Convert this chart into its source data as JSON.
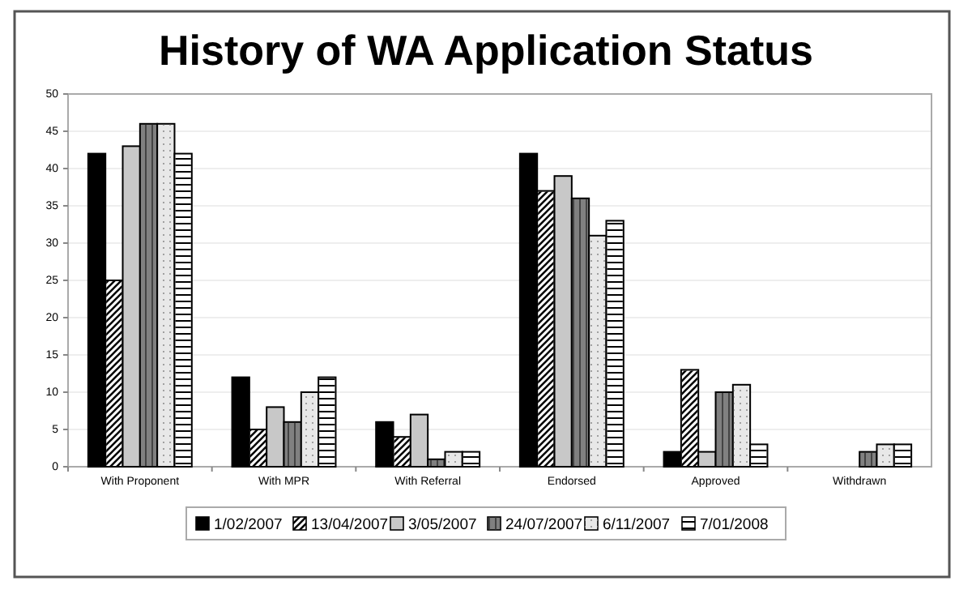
{
  "chart_data": {
    "type": "bar",
    "title": "History of WA Application Status",
    "categories": [
      "With Proponent",
      "With MPR",
      "With Referral",
      "Endorsed",
      "Approved",
      "Withdrawn"
    ],
    "series": [
      {
        "name": "1/02/2007",
        "color": "#000000",
        "values": [
          42,
          12,
          6,
          42,
          2,
          0
        ]
      },
      {
        "name": "13/04/2007",
        "color": "#ffffff",
        "values": [
          25,
          5,
          4,
          37,
          13,
          0
        ]
      },
      {
        "name": "3/05/2007",
        "color": "#c8c8c8",
        "values": [
          43,
          8,
          7,
          39,
          2,
          0
        ]
      },
      {
        "name": "24/07/2007",
        "color": "#808080",
        "values": [
          46,
          6,
          1,
          36,
          10,
          2
        ]
      },
      {
        "name": "6/11/2007",
        "color": "#e8e8e8",
        "values": [
          46,
          10,
          2,
          31,
          11,
          3
        ]
      },
      {
        "name": "7/01/2008",
        "color": "#ffffff",
        "values": [
          42,
          12,
          2,
          33,
          3,
          3
        ]
      }
    ],
    "ylim": [
      0,
      50
    ],
    "yticks": [
      0,
      5,
      10,
      15,
      20,
      25,
      30,
      35,
      40,
      45,
      50
    ],
    "grid": "y",
    "legend": "bottom"
  }
}
